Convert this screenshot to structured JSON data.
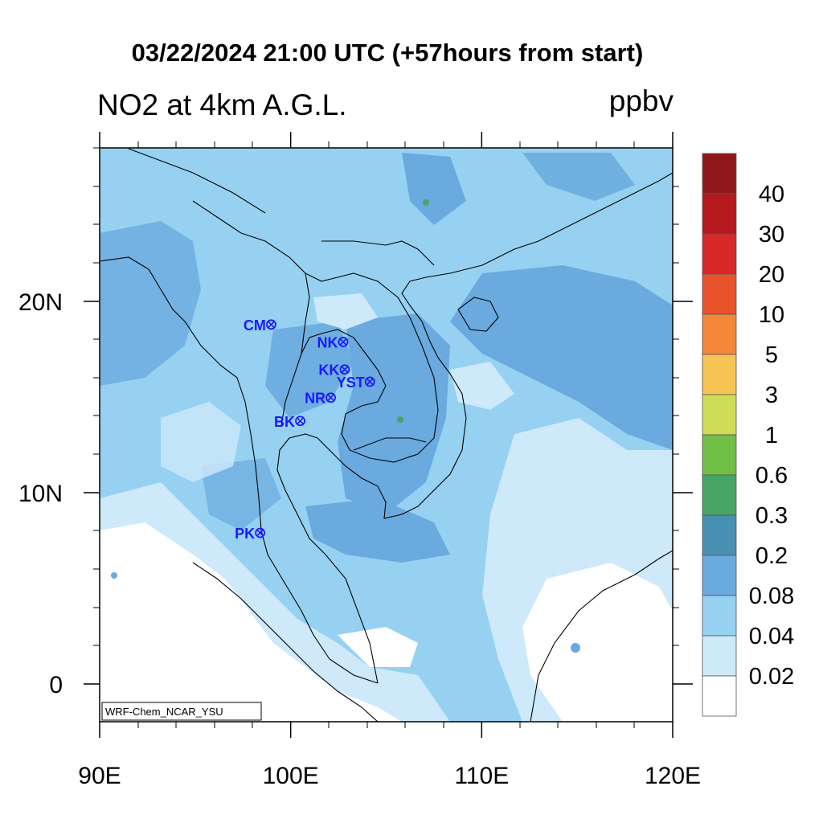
{
  "title": "03/22/2024 21:00 UTC (+57hours from start)",
  "subtitle": "NO2 at 4km A.G.L.",
  "units": "ppbv",
  "credit": "WRF-Chem_NCAR_YSU",
  "axes": {
    "x_ticks": [
      {
        "value": 90,
        "label": "90E"
      },
      {
        "value": 100,
        "label": "100E"
      },
      {
        "value": 110,
        "label": "110E"
      },
      {
        "value": 120,
        "label": "120E"
      }
    ],
    "y_ticks": [
      {
        "value": 20,
        "label": "20N"
      },
      {
        "value": 10,
        "label": "10N"
      },
      {
        "value": 0,
        "label": "0"
      }
    ]
  },
  "colorbar": {
    "labels": [
      "40",
      "30",
      "20",
      "10",
      "5",
      "3",
      "1",
      "0.6",
      "0.3",
      "0.2",
      "0.08",
      "0.04",
      "0.02"
    ],
    "colors": [
      "#8f1818",
      "#b5191d",
      "#d8282a",
      "#e8532c",
      "#f4873a",
      "#f7c352",
      "#cfdc57",
      "#72bf48",
      "#47a567",
      "#4790b2",
      "#6aaade",
      "#96d1f2",
      "#cde9fa",
      "#ffffff"
    ]
  },
  "stations": [
    {
      "name": "CM",
      "lon": 98.98,
      "lat": 18.79
    },
    {
      "name": "NK",
      "lon": 102.75,
      "lat": 17.88
    },
    {
      "name": "KK",
      "lon": 102.83,
      "lat": 16.44
    },
    {
      "name": "YST",
      "lon": 104.15,
      "lat": 15.8
    },
    {
      "name": "NR",
      "lon": 102.1,
      "lat": 14.97
    },
    {
      "name": "BK",
      "lon": 100.5,
      "lat": 13.75
    },
    {
      "name": "PK",
      "lon": 98.4,
      "lat": 7.9
    }
  ]
}
